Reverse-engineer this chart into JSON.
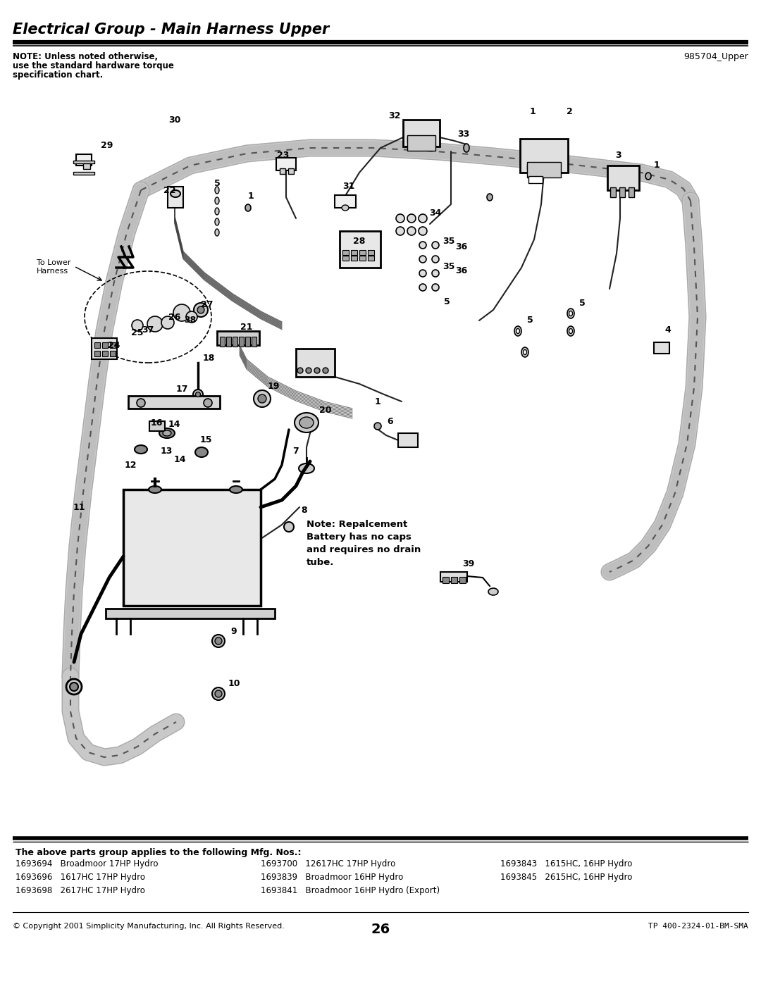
{
  "title": "Electrical Group - Main Harness Upper",
  "part_number": "985704_Upper",
  "note_line1": "NOTE: Unless noted otherwise,",
  "note_line2": "use the standard hardware torque",
  "note_line3": "specification chart.",
  "bg_color": "#ffffff",
  "parts_header": "The above parts group applies to the following Mfg. Nos.:",
  "parts_col1": [
    "1693694   Broadmoor 17HP Hydro",
    "1693696   1617HC 17HP Hydro",
    "1693698   2617HC 17HP Hydro"
  ],
  "parts_col2": [
    "1693700   12617HC 17HP Hydro",
    "1693839   Broadmoor 16HP Hydro",
    "1693841   Broadmoor 16HP Hydro (Export)"
  ],
  "parts_col3": [
    "1693843   1615HC, 16HP Hydro",
    "1693845   2615HC, 16HP Hydro"
  ],
  "copyright": "© Copyright 2001 Simplicity Manufacturing, Inc. All Rights Reserved.",
  "page_number": "26",
  "tp_number": "TP 400-2324-01-BM-SMA",
  "diagram_note": "Note: Repalcement\nBattery has no caps\nand requires no drain\ntube.",
  "to_lower_harness": "To Lower\nHarness"
}
